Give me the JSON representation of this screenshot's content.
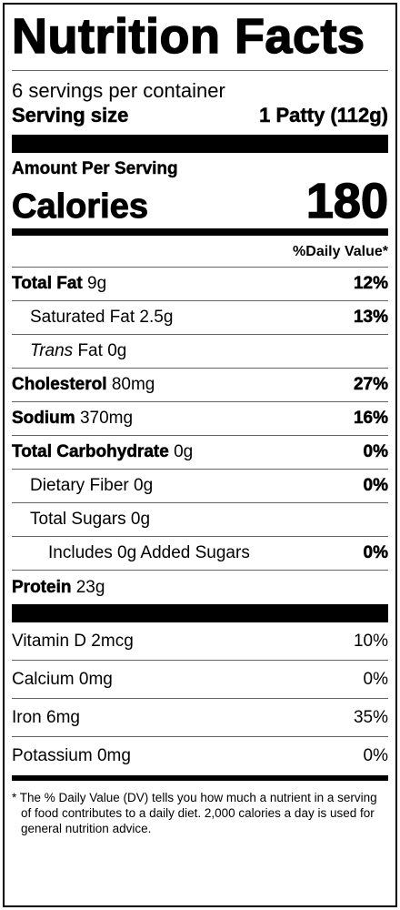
{
  "title": "Nutrition Facts",
  "servings": "6 servings per container",
  "serving_size": {
    "label": "Serving size",
    "value": "1 Patty (112g)"
  },
  "amount_per_serving": "Amount Per Serving",
  "calories": {
    "label": "Calories",
    "value": "180"
  },
  "daily_value_header": "%Daily Value*",
  "nutrients": [
    {
      "name": "Total Fat",
      "amount": "9g",
      "dv": "12%",
      "level": 0
    },
    {
      "name": "Saturated Fat",
      "amount": "2.5g",
      "dv": "13%",
      "level": 1
    },
    {
      "italic": "Trans",
      "name": "Fat",
      "amount": "0g",
      "level": 1
    },
    {
      "name": "Cholesterol",
      "amount": "80mg",
      "dv": "27%",
      "level": 0
    },
    {
      "name": "Sodium",
      "amount": "370mg",
      "dv": "16%",
      "level": 0
    },
    {
      "name": "Total Carbohydrate",
      "amount": "0g",
      "dv": "0%",
      "level": 0
    },
    {
      "name": "Dietary Fiber",
      "amount": "0g",
      "dv": "0%",
      "level": 1
    },
    {
      "name": "Total Sugars",
      "amount": "0g",
      "level": 1
    },
    {
      "name": "Includes 0g Added Sugars",
      "dv": "0%",
      "level": 2
    },
    {
      "name": "Protein",
      "amount": "23g",
      "level": 0
    }
  ],
  "vitamins": [
    {
      "name": "Vitamin D",
      "amount": "2mcg",
      "dv": "10%"
    },
    {
      "name": "Calcium",
      "amount": "0mg",
      "dv": "0%"
    },
    {
      "name": "Iron",
      "amount": "6mg",
      "dv": "35%"
    },
    {
      "name": "Potassium",
      "amount": "0mg",
      "dv": "0%"
    }
  ],
  "footnote": "* The % Daily Value (DV) tells you how much a nutrient in a serving of food contributes to a daily diet. 2,000 calories a day is used for general nutrition advice."
}
